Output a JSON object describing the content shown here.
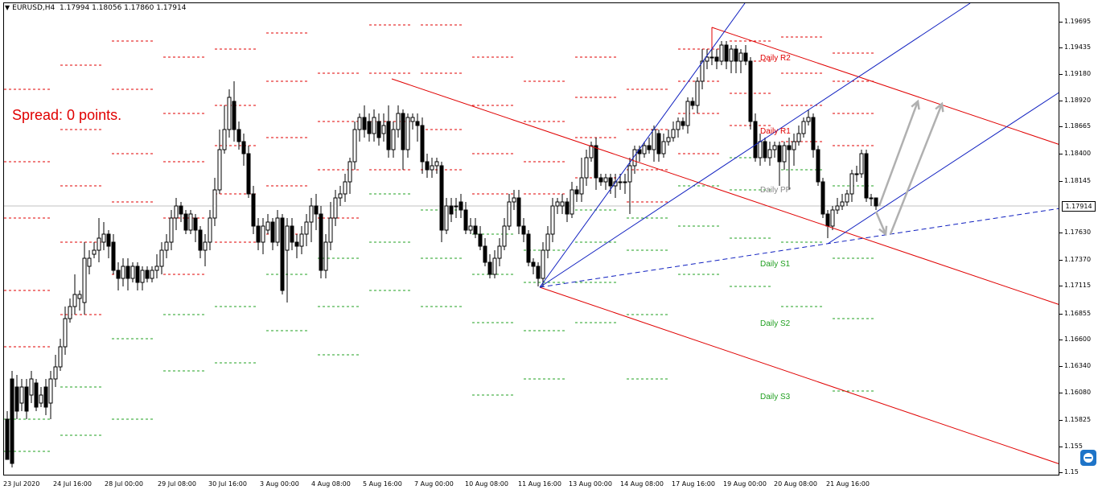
{
  "header": {
    "symbol": "EURUSD,H4",
    "ohlc": "1.17994 1.18056 1.17860 1.17914"
  },
  "spread_text": "Spread: 0 points.",
  "colors": {
    "resistance": "#e00000",
    "support": "#22a022",
    "pivot": "#888888",
    "pitchfork_red": "#e00000",
    "channel_blue": "#1020c0",
    "arrows": "#b0b0b0"
  },
  "price_axis": [
    "1.19695",
    "1.19435",
    "1.19180",
    "1.18920",
    "1.18665",
    "1.18400",
    "1.18145",
    "1.17914",
    "1.17630",
    "1.17370",
    "1.17115",
    "1.16855",
    "1.16600",
    "1.16340",
    "1.16080",
    "1.15825",
    "1.155",
    "1.15"
  ],
  "current_price": "1.17914",
  "time_axis": [
    "23 Jul 2020",
    "24 Jul 16:00",
    "28 Jul 00:00",
    "29 Jul 08:00",
    "30 Jul 16:00",
    "3 Aug 00:00",
    "4 Aug 08:00",
    "5 Aug 16:00",
    "7 Aug 00:00",
    "10 Aug 08:00",
    "11 Aug 16:00",
    "13 Aug 00:00",
    "14 Aug 08:00",
    "17 Aug 16:00",
    "19 Aug 00:00",
    "20 Aug 08:00",
    "21 Aug 16:00"
  ],
  "pivot_labels": {
    "r2": "Daily R2",
    "r1": "Daily R1",
    "pp": "Daily PP",
    "s1": "Daily S1",
    "s2": "Daily S2",
    "s3": "Daily S3"
  },
  "chart_data": {
    "type": "candlestick",
    "symbol": "EURUSD",
    "timeframe": "H4",
    "ylim": [
      1.15,
      1.199
    ],
    "last_candle": {
      "open": 1.17994,
      "high": 1.18056,
      "low": 1.1786,
      "close": 1.17914
    }
  }
}
